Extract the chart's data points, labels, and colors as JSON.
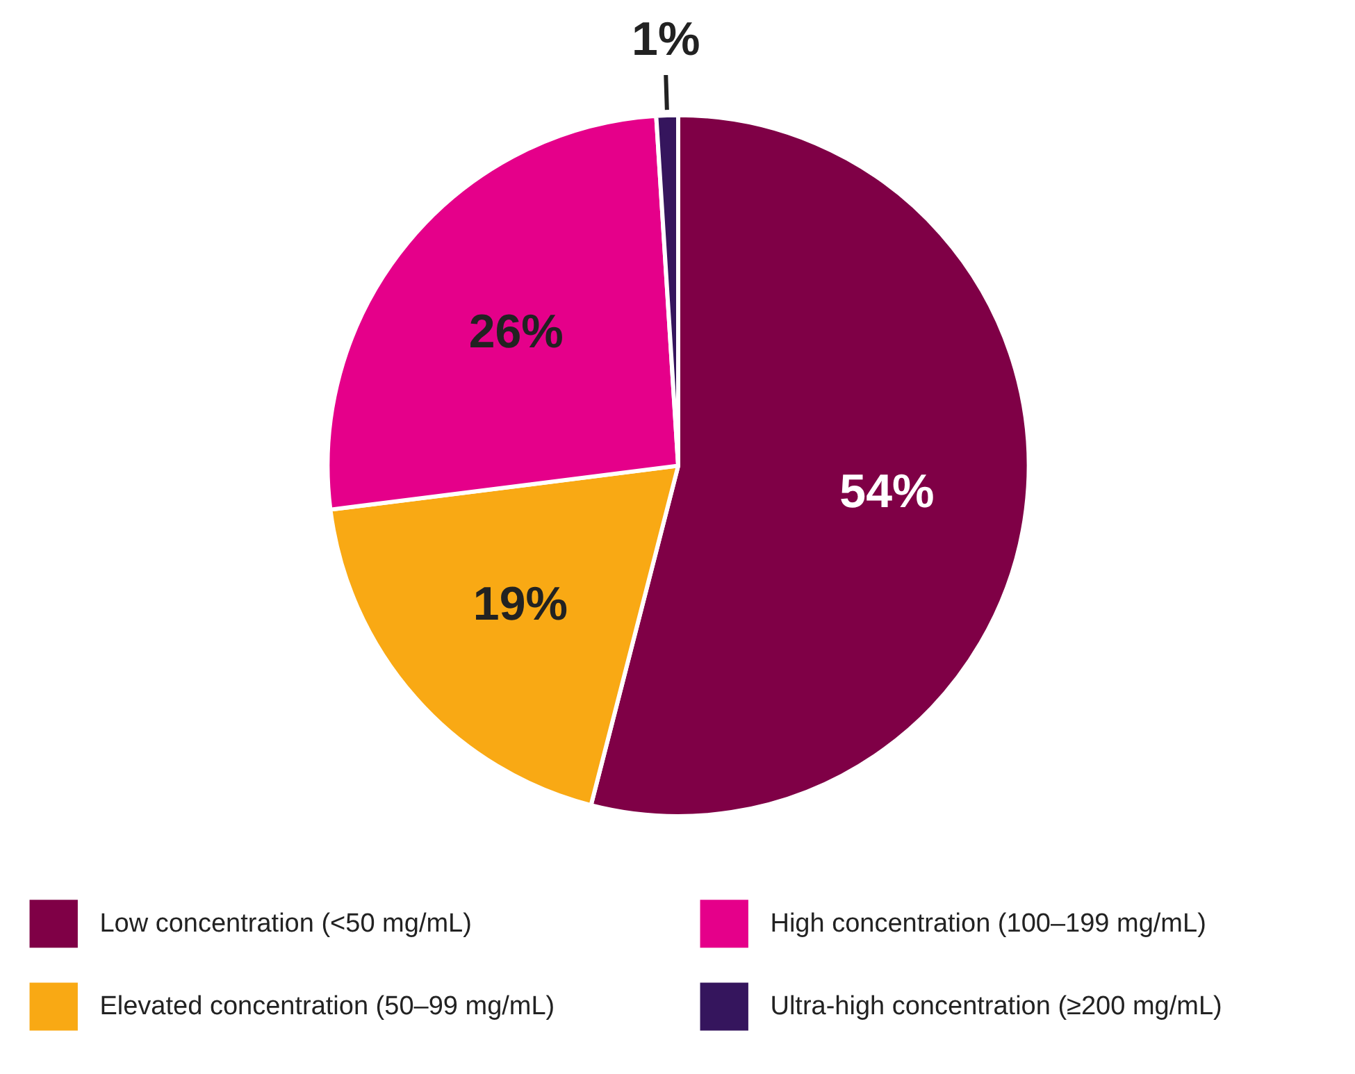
{
  "chart_data": {
    "type": "pie",
    "categories": [
      "Low concentration (<50 mg/mL)",
      "Elevated concentration (50–99 mg/mL)",
      "High concentration (100–199 mg/mL)",
      "Ultra-high concentration (≥200 mg/mL)"
    ],
    "values": [
      54,
      19,
      26,
      1
    ],
    "colors": [
      "#7f0046",
      "#f9a914",
      "#e5008a",
      "#35155d"
    ],
    "value_labels": [
      "54%",
      "19%",
      "26%",
      "1%"
    ],
    "legend": "bottom"
  }
}
